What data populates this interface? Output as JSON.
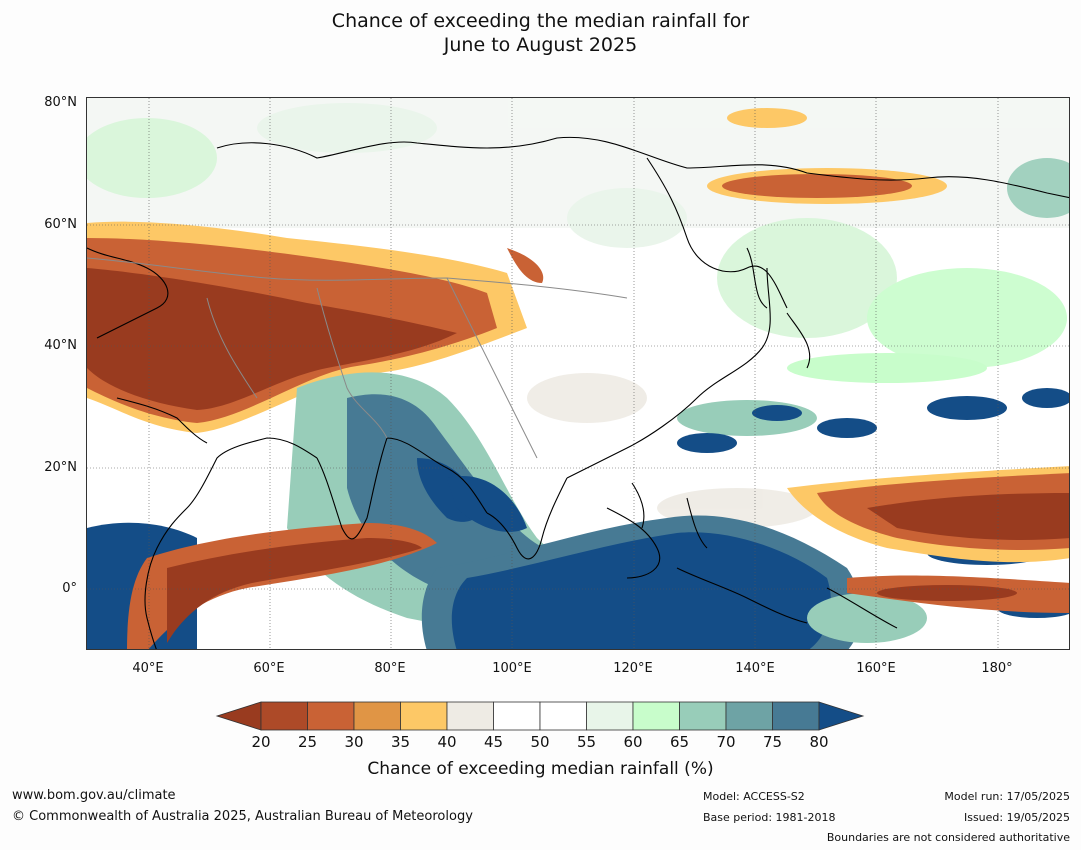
{
  "title_line1": "Chance of exceeding the median rainfall for",
  "title_line2": "June to August 2025",
  "lat_labels": [
    "80°N",
    "60°N",
    "40°N",
    "20°N",
    "0°"
  ],
  "lon_labels": [
    "40°E",
    "60°E",
    "80°E",
    "100°E",
    "120°E",
    "140°E",
    "160°E",
    "180°"
  ],
  "colorbar": {
    "label": "Chance of exceeding median rainfall (%)",
    "ticks": [
      "20",
      "25",
      "30",
      "35",
      "40",
      "45",
      "50",
      "55",
      "60",
      "65",
      "70",
      "75",
      "80"
    ],
    "colors": [
      "#993b1f",
      "#ad4a28",
      "#c96235",
      "#e09545",
      "#fdc866",
      "#eeebe4",
      "#ffffff",
      "#ffffff",
      "#e8f5e9",
      "#c8fdcb",
      "#98cdb9",
      "#6ea3a5",
      "#477a94",
      "#144d87"
    ]
  },
  "footer": {
    "website": "www.bom.gov.au/climate",
    "copyright": "© Commonwealth of Australia 2025, Australian Bureau of Meteorology",
    "model": "Model: ACCESS-S2",
    "base_period": "Base period: 1981-2018",
    "model_run": "Model run: 17/05/2025",
    "issued": "Issued: 19/05/2025",
    "disclaimer": "Boundaries are not considered authoritative"
  }
}
